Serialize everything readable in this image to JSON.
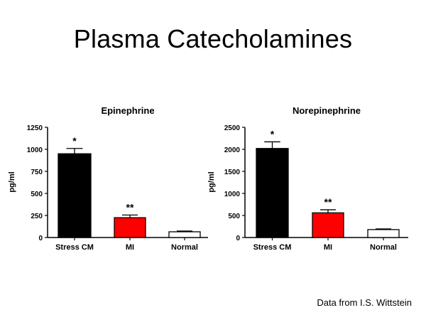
{
  "slide": {
    "title": "Plasma Catecholamines",
    "footnote": "Data from I.S. Wittstein"
  },
  "chart_data": [
    {
      "type": "bar",
      "title": "Epinephrine",
      "ylabel": "pg/ml",
      "xlabel": "",
      "ylim": [
        0,
        1250
      ],
      "yticks": [
        0,
        250,
        500,
        750,
        1000,
        1250
      ],
      "categories": [
        "Stress CM",
        "MI",
        "Normal"
      ],
      "values": [
        950,
        225,
        65
      ],
      "errors": [
        60,
        30,
        8
      ],
      "significance": [
        "*",
        "**",
        ""
      ],
      "colors": [
        "#000000",
        "#ff0000",
        "#ffffff"
      ],
      "grid": false
    },
    {
      "type": "bar",
      "title": "Norepinephrine",
      "ylabel": "pg/ml",
      "xlabel": "",
      "ylim": [
        0,
        2500
      ],
      "yticks": [
        0,
        500,
        1000,
        1500,
        2000,
        2500
      ],
      "categories": [
        "Stress CM",
        "MI",
        "Normal"
      ],
      "values": [
        2020,
        560,
        180
      ],
      "errors": [
        150,
        70,
        15
      ],
      "significance": [
        "*",
        "**",
        ""
      ],
      "colors": [
        "#000000",
        "#ff0000",
        "#ffffff"
      ],
      "grid": false
    }
  ]
}
